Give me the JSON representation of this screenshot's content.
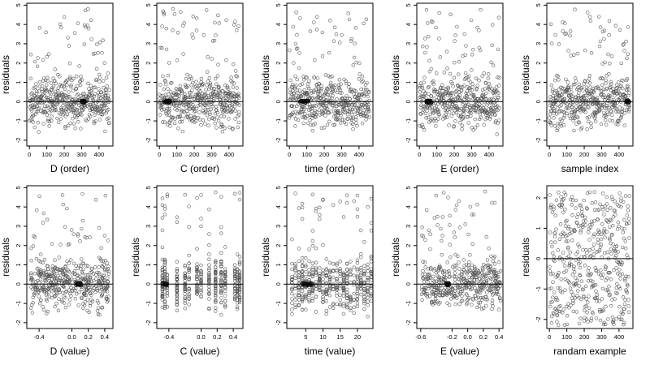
{
  "figure": {
    "rows": 2,
    "cols": 5
  },
  "chart_data": [
    {
      "type": "scatter",
      "xlabel": "D (order)",
      "ylabel": "residuals",
      "xlim": [
        -15,
        480
      ],
      "ylim": [
        -2.3,
        5.1
      ],
      "xticks": [
        0,
        100,
        200,
        300,
        400
      ],
      "xtick_labels": [
        "0",
        "100",
        "200",
        "300",
        "400"
      ],
      "yticks": [
        -2,
        -1,
        0,
        1,
        2,
        3,
        4,
        5
      ],
      "ytick_labels": [
        "-2",
        "-1",
        "0",
        "1",
        "2",
        "3",
        "4",
        "5"
      ],
      "hline": 0,
      "n_points": 460,
      "x_domain": [
        0,
        460
      ],
      "cluster_x": [
        300,
        320
      ],
      "seed": 11
    },
    {
      "type": "scatter",
      "xlabel": "C (order)",
      "ylabel": "residuals",
      "xlim": [
        -15,
        480
      ],
      "ylim": [
        -2.3,
        5.1
      ],
      "xticks": [
        0,
        100,
        200,
        300,
        400
      ],
      "xtick_labels": [
        "0",
        "100",
        "200",
        "300",
        "400"
      ],
      "yticks": [
        -2,
        -1,
        0,
        1,
        2,
        3,
        4,
        5
      ],
      "ytick_labels": [
        "-2",
        "-1",
        "0",
        "1",
        "2",
        "3",
        "4",
        "5"
      ],
      "hline": 0,
      "n_points": 460,
      "x_domain": [
        0,
        460
      ],
      "cluster_x": [
        30,
        60
      ],
      "seed": 23
    },
    {
      "type": "scatter",
      "xlabel": "time (order)",
      "ylabel": "residuals",
      "xlim": [
        -15,
        480
      ],
      "ylim": [
        -2.3,
        5.1
      ],
      "xticks": [
        0,
        100,
        200,
        300,
        400
      ],
      "xtick_labels": [
        "0",
        "100",
        "200",
        "300",
        "400"
      ],
      "yticks": [
        -2,
        -1,
        0,
        1,
        2,
        3,
        4,
        5
      ],
      "ytick_labels": [
        "-2",
        "-1",
        "0",
        "1",
        "2",
        "3",
        "4",
        "5"
      ],
      "hline": 0,
      "n_points": 460,
      "x_domain": [
        0,
        460
      ],
      "cluster_x": [
        60,
        110
      ],
      "seed": 37
    },
    {
      "type": "scatter",
      "xlabel": "E (order)",
      "ylabel": "residuals",
      "xlim": [
        -15,
        480
      ],
      "ylim": [
        -2.3,
        5.1
      ],
      "xticks": [
        0,
        100,
        200,
        300,
        400
      ],
      "xtick_labels": [
        "0",
        "100",
        "200",
        "300",
        "400"
      ],
      "yticks": [
        -2,
        -1,
        0,
        1,
        2,
        3,
        4,
        5
      ],
      "ytick_labels": [
        "-2",
        "-1",
        "0",
        "1",
        "2",
        "3",
        "4",
        "5"
      ],
      "hline": 0,
      "n_points": 460,
      "x_domain": [
        0,
        460
      ],
      "cluster_x": [
        40,
        70
      ],
      "seed": 41
    },
    {
      "type": "scatter",
      "xlabel": "sample index",
      "ylabel": "residuals",
      "xlim": [
        -15,
        480
      ],
      "ylim": [
        -2.3,
        5.1
      ],
      "xticks": [
        0,
        100,
        200,
        300,
        400
      ],
      "xtick_labels": [
        "0",
        "100",
        "200",
        "300",
        "400"
      ],
      "yticks": [
        -2,
        -1,
        0,
        1,
        2,
        3,
        4,
        5
      ],
      "ytick_labels": [
        "-2",
        "-1",
        "0",
        "1",
        "2",
        "3",
        "4",
        "5"
      ],
      "hline": 0,
      "n_points": 460,
      "x_domain": [
        0,
        460
      ],
      "cluster_x": [
        440,
        460
      ],
      "seed": 53
    },
    {
      "type": "scatter",
      "xlabel": "D (value)",
      "ylabel": "residuals",
      "xlim": [
        -0.55,
        0.5
      ],
      "ylim": [
        -2.3,
        5.1
      ],
      "xticks": [
        -0.4,
        0.0,
        0.2,
        0.4
      ],
      "xtick_labels": [
        "-0.4",
        "0.0",
        "0.2",
        "0.4"
      ],
      "yticks": [
        -2,
        -1,
        0,
        1,
        2,
        3,
        4,
        5
      ],
      "ytick_labels": [
        "-2",
        "-1",
        "0",
        "1",
        "2",
        "3",
        "4",
        "5"
      ],
      "hline": 0,
      "n_points": 460,
      "x_domain": [
        -0.5,
        0.45
      ],
      "cluster_x": [
        0.05,
        0.12
      ],
      "seed": 61
    },
    {
      "type": "scatter",
      "xlabel": "C (value)",
      "ylabel": "residuals",
      "xlim": [
        -0.55,
        0.52
      ],
      "ylim": [
        -2.3,
        5.1
      ],
      "xticks": [
        -0.4,
        0.0,
        0.2,
        0.4
      ],
      "xtick_labels": [
        "-0.4",
        "0.0",
        "0.2",
        "0.4"
      ],
      "yticks": [
        -2,
        -1,
        0,
        1,
        2,
        3,
        4,
        5
      ],
      "ytick_labels": [
        "-2",
        "-1",
        "0",
        "1",
        "2",
        "3",
        "4",
        "5"
      ],
      "hline": 0,
      "n_points": 460,
      "x_domain": [
        -0.5,
        0.48
      ],
      "discrete_x": [
        -0.48,
        -0.45,
        -0.42,
        -0.3,
        -0.2,
        -0.15,
        -0.05,
        0.0,
        0.1,
        0.18,
        0.25,
        0.3,
        0.42,
        0.45,
        0.48
      ],
      "cluster_x": [
        -0.48,
        -0.42
      ],
      "seed": 71
    },
    {
      "type": "scatter",
      "xlabel": "time (value)",
      "ylabel": "residuals",
      "xlim": [
        -0.5,
        24.5
      ],
      "ylim": [
        -2.3,
        5.1
      ],
      "xticks": [
        5,
        10,
        15,
        20
      ],
      "xtick_labels": [
        "5",
        "10",
        "15",
        "20"
      ],
      "yticks": [
        -2,
        -1,
        0,
        1,
        2,
        3,
        4,
        5
      ],
      "ytick_labels": [
        "-2",
        "-1",
        "0",
        "1",
        "2",
        "3",
        "4",
        "5"
      ],
      "hline": 0,
      "n_points": 460,
      "x_domain": [
        1,
        24
      ],
      "discrete_x": [
        1,
        2,
        3,
        4,
        5,
        6,
        7,
        8,
        9,
        10,
        11,
        12,
        13,
        14,
        15,
        16,
        17,
        18,
        19,
        20,
        21,
        22,
        23,
        24
      ],
      "cluster_x": [
        4,
        7
      ],
      "seed": 83
    },
    {
      "type": "scatter",
      "xlabel": "E (value)",
      "ylabel": "residuals",
      "xlim": [
        -0.65,
        0.45
      ],
      "ylim": [
        -2.3,
        5.1
      ],
      "xticks": [
        -0.6,
        -0.2,
        0.0,
        0.2,
        0.4
      ],
      "xtick_labels": [
        "-0.6",
        "-0.2",
        "0.0",
        "0.2",
        "0.4"
      ],
      "yticks": [
        -2,
        -1,
        0,
        1,
        2,
        3,
        4,
        5
      ],
      "ytick_labels": [
        "-2",
        "-1",
        "0",
        "1",
        "2",
        "3",
        "4",
        "5"
      ],
      "hline": 0,
      "n_points": 460,
      "x_domain": [
        -0.6,
        0.42
      ],
      "cluster_x": [
        -0.28,
        -0.24
      ],
      "seed": 97
    },
    {
      "type": "scatter",
      "xlabel": "randam example",
      "ylabel": "residuals",
      "xlim": [
        -15,
        480
      ],
      "ylim": [
        -2.3,
        2.4
      ],
      "xticks": [
        0,
        100,
        200,
        300,
        400
      ],
      "xtick_labels": [
        "0",
        "100",
        "200",
        "300",
        "400"
      ],
      "yticks": [
        -2,
        -1,
        0,
        1,
        2
      ],
      "ytick_labels": [
        "-2",
        "-1",
        "0",
        "1",
        "2"
      ],
      "hline": 0,
      "n_points": 460,
      "x_domain": [
        0,
        460
      ],
      "uniform_y": [
        -2.2,
        2.2
      ],
      "seed": 101
    }
  ]
}
